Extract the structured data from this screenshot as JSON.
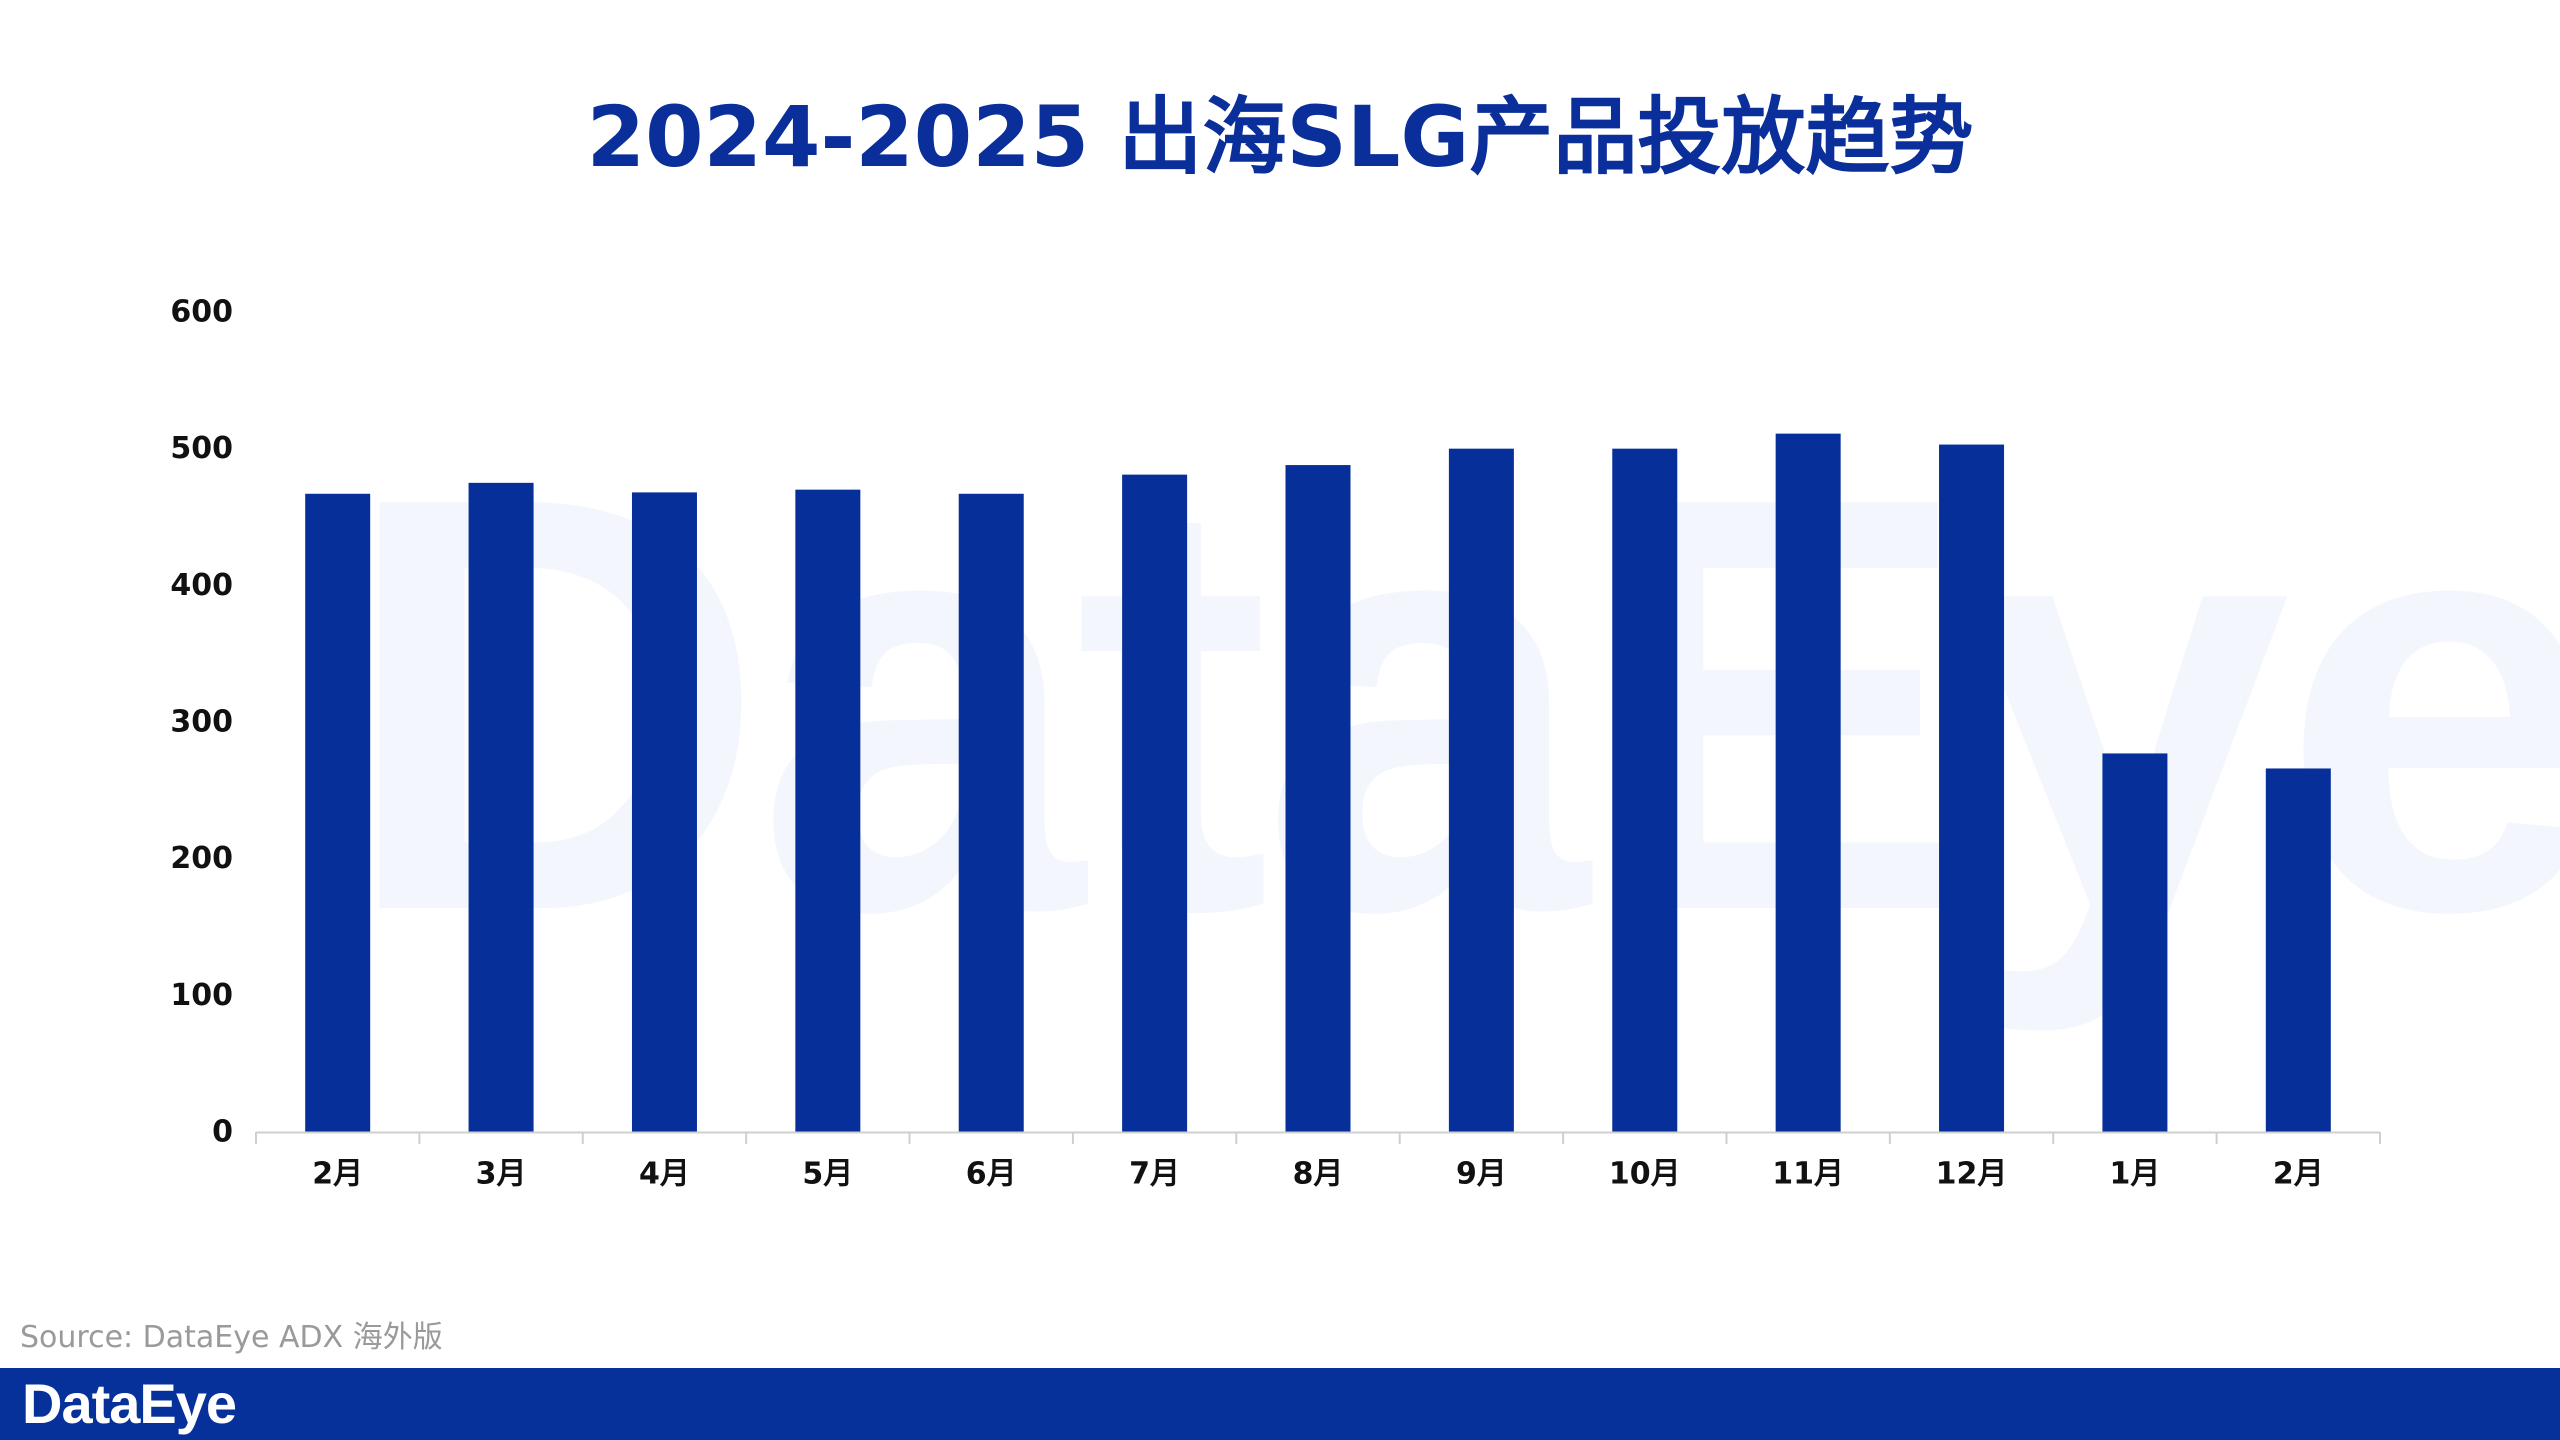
{
  "title": "2024-2025 出海SLG产品投放趋势",
  "source": "Source: DataEye ADX 海外版",
  "brand": "DataEye",
  "watermark": "DataEye",
  "colors": {
    "bar": "#062f9a",
    "title": "#0a2e9a",
    "footer": "#06309a"
  },
  "chart_data": {
    "type": "bar",
    "title": "2024-2025 出海SLG产品投放趋势",
    "xlabel": "",
    "ylabel": "",
    "categories": [
      "2月",
      "3月",
      "4月",
      "5月",
      "6月",
      "7月",
      "8月",
      "9月",
      "10月",
      "11月",
      "12月",
      "1月",
      "2月"
    ],
    "values": [
      467,
      475,
      468,
      470,
      467,
      481,
      488,
      500,
      500,
      511,
      503,
      277,
      266
    ],
    "ylim": [
      0,
      600
    ],
    "yticks": [
      "0",
      "100",
      "200",
      "300",
      "400",
      "500",
      "600"
    ],
    "grid": false,
    "legend": "none"
  }
}
